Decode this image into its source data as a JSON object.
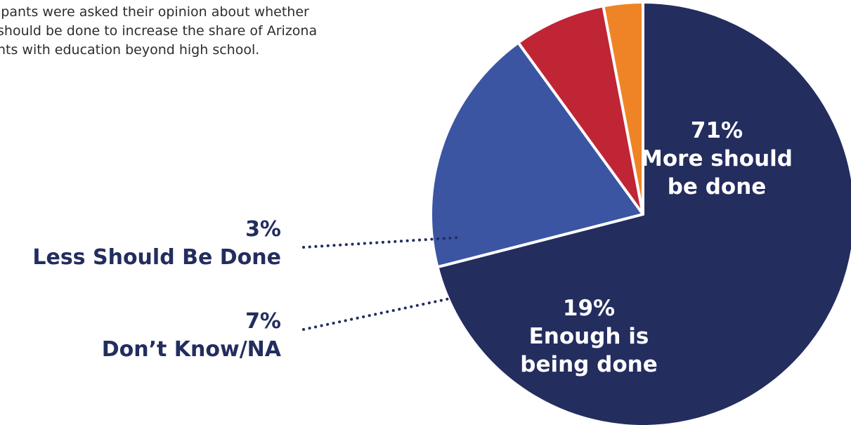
{
  "intro": {
    "line1": "ipants were asked their opinion about whether",
    "line2": "should be done to increase the share of Arizona",
    "line3": "nts with education beyond high school."
  },
  "chart_data": {
    "type": "pie",
    "start_angle_deg": 90,
    "direction": "clockwise",
    "slices": [
      {
        "key": "more",
        "value": 71,
        "value_label": "71%",
        "lines": [
          "More should",
          "be done"
        ],
        "color": "#232d5e"
      },
      {
        "key": "enough",
        "value": 19,
        "value_label": "19%",
        "lines": [
          "Enough is",
          "being done"
        ],
        "color": "#3b55a3"
      },
      {
        "key": "dontknow",
        "value": 7,
        "value_label": "7%",
        "lines": [
          "Don’t Know/NA"
        ],
        "color": "#c02535"
      },
      {
        "key": "less",
        "value": 3,
        "value_label": "3%",
        "lines": [
          "Less Should Be Done"
        ],
        "color": "#ef8427"
      }
    ]
  }
}
